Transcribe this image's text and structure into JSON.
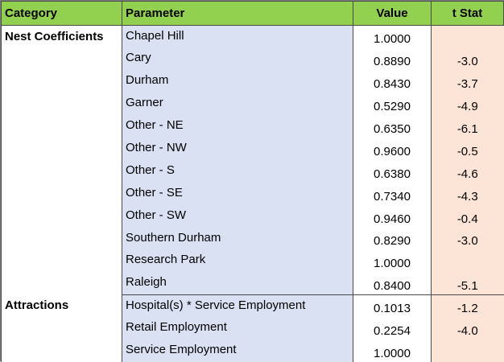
{
  "headers": {
    "category": "Category",
    "parameter": "Parameter",
    "value": "Value",
    "tstat": "t Stat"
  },
  "groups": [
    {
      "category": "Nest Coefficients",
      "rows": [
        {
          "parameter": "Chapel Hill",
          "value": "1.0000",
          "tstat": ""
        },
        {
          "parameter": "Cary",
          "value": "0.8890",
          "tstat": "-3.0"
        },
        {
          "parameter": "Durham",
          "value": "0.8430",
          "tstat": "-3.7"
        },
        {
          "parameter": "Garner",
          "value": "0.5290",
          "tstat": "-4.9"
        },
        {
          "parameter": "Other - NE",
          "value": "0.6350",
          "tstat": "-6.1"
        },
        {
          "parameter": "Other - NW",
          "value": "0.9600",
          "tstat": "-0.5"
        },
        {
          "parameter": "Other - S",
          "value": "0.6380",
          "tstat": "-4.6"
        },
        {
          "parameter": "Other - SE",
          "value": "0.7340",
          "tstat": "-4.3"
        },
        {
          "parameter": "Other - SW",
          "value": "0.9460",
          "tstat": "-0.4"
        },
        {
          "parameter": "Southern Durham",
          "value": "0.8290",
          "tstat": "-3.0"
        },
        {
          "parameter": "Research Park",
          "value": "1.0000",
          "tstat": ""
        },
        {
          "parameter": "Raleigh",
          "value": "0.8400",
          "tstat": "-5.1"
        }
      ]
    },
    {
      "category": "Attractions",
      "rows": [
        {
          "parameter": "Hospital(s) * Service Employment",
          "value": "0.1013",
          "tstat": "-1.2"
        },
        {
          "parameter": "Retail Employment",
          "value": "0.2254",
          "tstat": "-4.0"
        },
        {
          "parameter": "Service Employment",
          "value": "1.0000",
          "tstat": ""
        }
      ]
    }
  ],
  "colors": {
    "header_bg": "#92d050",
    "parameter_bg": "#d9e1f2",
    "tstat_bg": "#fce4d6"
  }
}
